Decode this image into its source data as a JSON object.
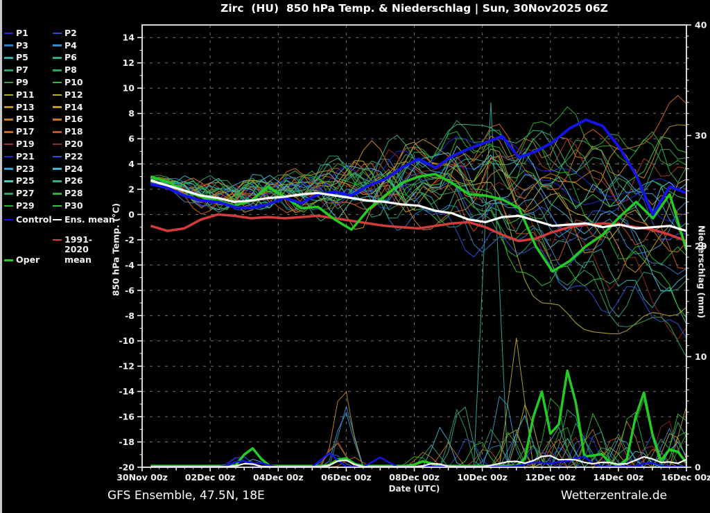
{
  "title": "Zirc  (HU)  850 hPa Temp. & Niederschlag | Sun, 30Nov2025 06Z",
  "footer": {
    "left": "GFS Ensemble, 47.5N, 18E",
    "right": "Wetterzentrale.de"
  },
  "axes": {
    "left_label": "850 hPa Temp. (°C)",
    "right_label": "Niederschlag (mm)",
    "x_label": "Date (UTC)",
    "temp_ticks": [
      14,
      12,
      10,
      8,
      6,
      4,
      2,
      0,
      -2,
      -4,
      -6,
      -8,
      -10,
      -12,
      -14,
      -16,
      -18,
      -20
    ],
    "precip_ticks": [
      40,
      30,
      20,
      10,
      0
    ],
    "x_tick_labels": [
      "30Nov 00z",
      "02Dec 00z",
      "04Dec 00z",
      "06Dec 00z",
      "08Dec 00z",
      "10Dec 00z",
      "12Dec 00z",
      "14Dec 00z",
      "16Dec 00z"
    ],
    "temp_range": [
      -20,
      15
    ],
    "precip_range": [
      0,
      40
    ],
    "x_range_days": [
      0,
      16
    ]
  },
  "colors": {
    "background": "#000000",
    "grid": "#9b9b9b",
    "axis_box": "#d8d8d8",
    "text": "#f0f0f0"
  },
  "chart_data": {
    "type": "line",
    "title": "Zirc (HU) 850 hPa Temp. & Niederschlag | Sun, 30Nov2025 06Z",
    "x_unit": "days since 30Nov2025 00z",
    "main_x_start": 0.25,
    "main_x_end": 16,
    "member_anchor_days": [
      0.25,
      2.22,
      4.19,
      6.16,
      8.13,
      10.09,
      12.06,
      14.03,
      16
    ],
    "main_series": {
      "control": {
        "label": "Control",
        "color": "#1414e6",
        "width": 4,
        "temp": [
          2.4,
          2.1,
          1.5,
          1.1,
          1.0,
          0.6,
          0.5,
          0.8,
          1.3,
          0.9,
          1.6,
          1.8,
          1.5,
          2.3,
          2.8,
          3.7,
          4.4,
          3.7,
          4.6,
          5.2,
          5.7,
          6.2,
          4.5,
          5.0,
          5.7,
          6.8,
          7.5,
          7.0,
          5.3,
          3.1,
          0.0,
          2.2,
          1.7
        ],
        "precip_spikes": [
          [
            2.9,
            0.7
          ],
          [
            3.4,
            0.5
          ],
          [
            5.5,
            1.3
          ],
          [
            7.0,
            0.9
          ],
          [
            11.6,
            0.5,
            0.8
          ],
          [
            12.4,
            0.6,
            0.9
          ],
          [
            12.9,
            1.2
          ],
          [
            14.9,
            0.5
          ]
        ]
      },
      "ens_mean": {
        "label": "Ens. mean",
        "color": "#ffffff",
        "width": 3.2,
        "temp": [
          2.7,
          2.3,
          1.9,
          1.5,
          1.3,
          1.0,
          1.1,
          1.3,
          1.4,
          1.6,
          1.7,
          1.5,
          1.3,
          1.1,
          1.0,
          0.8,
          0.7,
          0.3,
          0.1,
          -0.4,
          -0.6,
          -0.2,
          -0.1,
          -0.5,
          -0.9,
          -0.8,
          -0.7,
          -1.0,
          -0.8,
          -1.1,
          -1.0,
          -0.9,
          -1.3
        ],
        "precip_spikes": [
          [
            3.1,
            0.4
          ],
          [
            5.9,
            0.8
          ],
          [
            8.6,
            0.4
          ],
          [
            10.9,
            0.6,
            0.9
          ],
          [
            11.9,
            1.2,
            0.8
          ],
          [
            12.6,
            0.8,
            0.9
          ],
          [
            13.6,
            0.5,
            0.9
          ],
          [
            14.8,
            1.0,
            0.8
          ],
          [
            15.4,
            0.6
          ],
          [
            16,
            0.7
          ]
        ]
      },
      "climate_mean": {
        "label": "1991-2020 mean",
        "color": "#d43c3c",
        "width": 3.5,
        "temp": [
          -0.9,
          -1.3,
          -1.1,
          -0.4,
          0.0,
          -0.1,
          -0.3,
          -0.2,
          -0.3,
          -0.2,
          -0.1,
          -0.3,
          -0.5,
          -0.7,
          -0.9,
          -1.0,
          -1.1,
          -0.9,
          -0.7,
          -0.6,
          -1.0,
          -1.6,
          -2.1,
          -1.9,
          -1.4,
          -1.0,
          -0.8,
          -0.7,
          -0.8,
          -1.0,
          -1.2,
          -1.6,
          -2.1
        ],
        "precip_spikes": []
      },
      "oper": {
        "label": "Oper",
        "color": "#22cc22",
        "width": 3.5,
        "temp": [
          3.0,
          2.6,
          1.9,
          1.4,
          1.1,
          0.7,
          1.1,
          2.2,
          1.4,
          0.5,
          0.6,
          -0.4,
          -1.2,
          0.4,
          1.5,
          2.5,
          3.0,
          3.2,
          2.5,
          1.6,
          1.5,
          1.2,
          0.5,
          -2.5,
          -4.5,
          -3.7,
          -2.5,
          -1.6,
          -0.2,
          1.0,
          -0.3,
          1.6,
          -2.8
        ],
        "precip_spikes": [
          [
            3.2,
            1.9
          ],
          [
            5.9,
            1.0
          ],
          [
            8.3,
            0.6
          ],
          [
            11.7,
            7.6
          ],
          [
            12.55,
            9.7
          ],
          [
            13.4,
            1.5
          ],
          [
            14.7,
            7.5
          ],
          [
            15.6,
            2.0
          ]
        ]
      }
    },
    "members": [
      {
        "name": "P1",
        "color": "#2626d8",
        "temp_anchors": [
          2.6,
          1.3,
          1.7,
          2.1,
          3.1,
          4.6,
          2.1,
          1.1,
          2.6
        ],
        "precip_spikes": [
          [
            3.0,
            0.9
          ],
          [
            11.8,
            1.5
          ],
          [
            14.5,
            0.8
          ]
        ]
      },
      {
        "name": "P2",
        "color": "#2c50d8",
        "temp_anchors": [
          2.5,
          0.9,
          1.3,
          1.6,
          2.1,
          1.1,
          -0.9,
          0.6,
          -1.4
        ],
        "precip_spikes": [
          [
            2.9,
            1.2
          ],
          [
            12.9,
            3.2
          ],
          [
            15.2,
            1.0
          ]
        ]
      },
      {
        "name": "P3",
        "color": "#2e7cc0",
        "temp_anchors": [
          2.8,
          1.6,
          2.1,
          1.1,
          0.1,
          -1.4,
          -2.9,
          -1.9,
          -3.9
        ],
        "precip_spikes": [
          [
            5.6,
            1.5
          ],
          [
            10.4,
            2.5
          ],
          [
            13.4,
            4.0
          ]
        ]
      },
      {
        "name": "P4",
        "color": "#388cc8",
        "temp_anchors": [
          2.4,
          1.1,
          1.5,
          2.3,
          3.6,
          2.1,
          0.1,
          -2.4,
          -0.9
        ],
        "precip_spikes": [
          [
            6.0,
            5.5
          ],
          [
            11.0,
            3.0
          ],
          [
            15.5,
            3.5
          ]
        ]
      },
      {
        "name": "P5",
        "color": "#30b0a8",
        "temp_anchors": [
          2.9,
          1.9,
          2.5,
          3.1,
          1.6,
          0.6,
          -1.9,
          -4.9,
          -7.9
        ],
        "precip_spikes": [
          [
            10.25,
            33.0
          ],
          [
            12.2,
            4.0
          ],
          [
            14.2,
            2.0
          ]
        ]
      },
      {
        "name": "P6",
        "color": "#34a888",
        "temp_anchors": [
          2.7,
          1.5,
          1.1,
          0.6,
          2.6,
          4.1,
          5.6,
          2.1,
          0.1
        ],
        "precip_spikes": [
          [
            8.5,
            2.0
          ],
          [
            12.6,
            6.5
          ],
          [
            15.8,
            4.5
          ]
        ]
      },
      {
        "name": "P7",
        "color": "#2ea068",
        "temp_anchors": [
          2.5,
          1.7,
          2.3,
          1.9,
          0.6,
          -0.9,
          -3.9,
          -6.4,
          -4.9
        ],
        "precip_spikes": [
          [
            9.3,
            5.8
          ],
          [
            13.0,
            2.5
          ]
        ]
      },
      {
        "name": "P8",
        "color": "#2ea256",
        "temp_anchors": [
          2.8,
          2.1,
          2.9,
          3.6,
          4.6,
          6.6,
          4.1,
          2.6,
          4.6
        ],
        "precip_spikes": [
          [
            11.5,
            2.0
          ],
          [
            14.0,
            3.0
          ]
        ]
      },
      {
        "name": "P9",
        "color": "#28a832",
        "temp_anchors": [
          3.0,
          1.3,
          0.9,
          1.6,
          3.1,
          5.1,
          7.1,
          5.6,
          3.1
        ],
        "precip_spikes": [
          [
            12.4,
            4.5
          ],
          [
            14.7,
            6.8
          ]
        ]
      },
      {
        "name": "P10",
        "color": "#30c030",
        "temp_anchors": [
          2.6,
          1.1,
          1.9,
          2.6,
          1.1,
          -0.4,
          -5.9,
          -3.9,
          -6.4
        ],
        "precip_spikes": [
          [
            10.8,
            3.5
          ],
          [
            13.5,
            1.5
          ],
          [
            15.9,
            4.0
          ]
        ]
      },
      {
        "name": "P11",
        "color": "#b4ac28",
        "temp_anchors": [
          2.4,
          1.6,
          2.7,
          2.1,
          3.6,
          2.1,
          -7.9,
          -9.4,
          -6.9
        ],
        "precip_spikes": [
          [
            11.0,
            11.7
          ],
          [
            13.8,
            2.0
          ]
        ]
      },
      {
        "name": "P12",
        "color": "#c0b028",
        "temp_anchors": [
          2.5,
          1.0,
          1.6,
          3.1,
          4.6,
          3.1,
          1.1,
          -1.4,
          1.6
        ],
        "precip_spikes": [
          [
            11.3,
            6.3
          ],
          [
            15.6,
            3.8
          ]
        ]
      },
      {
        "name": "P13",
        "color": "#c09020",
        "temp_anchors": [
          2.7,
          1.4,
          2.1,
          4.1,
          5.1,
          3.6,
          2.1,
          3.6,
          6.6
        ],
        "precip_spikes": [
          [
            5.9,
            8.5
          ],
          [
            12.0,
            2.5
          ]
        ]
      },
      {
        "name": "P14",
        "color": "#c89820",
        "temp_anchors": [
          2.8,
          1.9,
          1.3,
          0.1,
          1.6,
          3.1,
          0.6,
          -3.4,
          -1.9
        ],
        "precip_spikes": [
          [
            5.7,
            2.4
          ],
          [
            10.9,
            4.2
          ],
          [
            16.0,
            5.5
          ]
        ]
      },
      {
        "name": "P15",
        "color": "#c87c1c",
        "temp_anchors": [
          2.5,
          1.2,
          1.8,
          2.9,
          2.1,
          4.6,
          6.1,
          3.1,
          1.1
        ],
        "precip_spikes": [
          [
            8.3,
            1.5
          ],
          [
            13.2,
            3.8
          ]
        ]
      },
      {
        "name": "P16",
        "color": "#d0741c",
        "temp_anchors": [
          2.4,
          1.7,
          2.4,
          1.3,
          -0.4,
          1.6,
          3.6,
          1.1,
          -2.9
        ],
        "precip_spikes": [
          [
            9.0,
            2.2
          ],
          [
            14.3,
            4.6
          ]
        ]
      },
      {
        "name": "P17",
        "color": "#d06418",
        "temp_anchors": [
          2.7,
          0.8,
          1.4,
          2.3,
          3.9,
          5.6,
          3.1,
          6.1,
          7.6
        ],
        "precip_spikes": [
          [
            6.2,
            1.0
          ],
          [
            12.2,
            2.8
          ],
          [
            15.1,
            2.0
          ]
        ]
      },
      {
        "name": "P18",
        "color": "#c45420",
        "temp_anchors": [
          2.5,
          1.5,
          2.2,
          3.3,
          2.6,
          0.1,
          -2.4,
          -0.9,
          -3.4
        ],
        "precip_spikes": [
          [
            10.1,
            2.0
          ],
          [
            13.9,
            3.4
          ]
        ]
      },
      {
        "name": "P19",
        "color": "#a83824",
        "temp_anchors": [
          2.8,
          1.3,
          2.0,
          1.1,
          2.1,
          3.6,
          5.1,
          2.1,
          4.1
        ],
        "precip_spikes": [
          [
            5.7,
            2.6
          ],
          [
            11.9,
            1.8
          ],
          [
            14.9,
            2.4
          ]
        ]
      },
      {
        "name": "P20",
        "color": "#942824",
        "temp_anchors": [
          2.4,
          1.8,
          1.2,
          2.6,
          4.1,
          2.6,
          -1.4,
          -4.4,
          -8.9
        ],
        "precip_spikes": [
          [
            12.7,
            3.0
          ],
          [
            15.4,
            5.2
          ]
        ]
      },
      {
        "name": "P21",
        "color": "#2626d8",
        "temp_anchors": [
          2.7,
          1.4,
          2.3,
          3.1,
          4.6,
          6.1,
          3.6,
          1.6,
          -0.4
        ],
        "precip_spikes": [
          [
            2.8,
            1.0
          ],
          [
            11.6,
            2.2
          ],
          [
            13.1,
            3.6
          ]
        ]
      },
      {
        "name": "P22",
        "color": "#2c50d8",
        "temp_anchors": [
          2.5,
          1.0,
          1.7,
          2.1,
          0.6,
          -1.9,
          -4.4,
          -6.9,
          -9.4
        ],
        "precip_spikes": [
          [
            9.6,
            3.2
          ],
          [
            12.3,
            2.0
          ],
          [
            15.0,
            3.0
          ]
        ]
      },
      {
        "name": "P23",
        "color": "#38a0d0",
        "temp_anchors": [
          2.9,
          1.6,
          2.6,
          1.6,
          3.1,
          1.1,
          -0.9,
          1.6,
          0.6
        ],
        "precip_spikes": [
          [
            5.95,
            5.5
          ],
          [
            10.6,
            8.0
          ],
          [
            14.1,
            3.2
          ]
        ]
      },
      {
        "name": "P24",
        "color": "#48b4d4",
        "temp_anchors": [
          2.6,
          1.2,
          1.9,
          2.7,
          4.1,
          2.1,
          1.1,
          -1.4,
          -5.4
        ],
        "precip_spikes": [
          [
            8.8,
            4.0
          ],
          [
            11.2,
            5.2
          ],
          [
            15.7,
            2.5
          ]
        ]
      },
      {
        "name": "P25",
        "color": "#50c8c0",
        "temp_anchors": [
          2.8,
          2.0,
          1.5,
          0.9,
          2.3,
          4.6,
          2.6,
          0.6,
          2.1
        ],
        "precip_spikes": [
          [
            3.3,
            0.8
          ],
          [
            12.5,
            2.6
          ],
          [
            14.6,
            1.8
          ]
        ]
      },
      {
        "name": "P26",
        "color": "#38ac80",
        "temp_anchors": [
          2.5,
          1.1,
          2.1,
          3.6,
          5.1,
          7.1,
          5.1,
          3.1,
          1.1
        ],
        "precip_spikes": [
          [
            9.4,
            6.8
          ],
          [
            13.6,
            2.2
          ]
        ]
      },
      {
        "name": "P27",
        "color": "#2ea25c",
        "temp_anchors": [
          2.7,
          1.7,
          2.5,
          1.9,
          3.3,
          0.6,
          -3.4,
          -7.9,
          -9.9
        ],
        "precip_spikes": [
          [
            10.3,
            3.8
          ],
          [
            12.8,
            4.4
          ],
          [
            15.3,
            2.8
          ]
        ]
      },
      {
        "name": "P28",
        "color": "#34ac40",
        "temp_anchors": [
          2.4,
          1.3,
          1.6,
          2.5,
          1.3,
          3.1,
          4.6,
          6.1,
          4.1
        ],
        "precip_spikes": [
          [
            11.4,
            2.4
          ],
          [
            14.4,
            6.2
          ]
        ]
      },
      {
        "name": "P29",
        "color": "#28b428",
        "temp_anchors": [
          2.8,
          1.5,
          2.2,
          2.9,
          4.3,
          5.6,
          2.1,
          -1.9,
          -4.4
        ],
        "precip_spikes": [
          [
            8.1,
            1.2
          ],
          [
            12.1,
            7.8
          ],
          [
            16.0,
            3.0
          ]
        ]
      },
      {
        "name": "P30",
        "color": "#38c038",
        "temp_anchors": [
          2.5,
          1.8,
          1.3,
          1.9,
          2.9,
          1.6,
          -0.4,
          2.6,
          5.1
        ],
        "precip_spikes": [
          [
            9.9,
            2.8
          ],
          [
            13.3,
            5.4
          ],
          [
            15.85,
            6.0
          ]
        ]
      }
    ]
  }
}
